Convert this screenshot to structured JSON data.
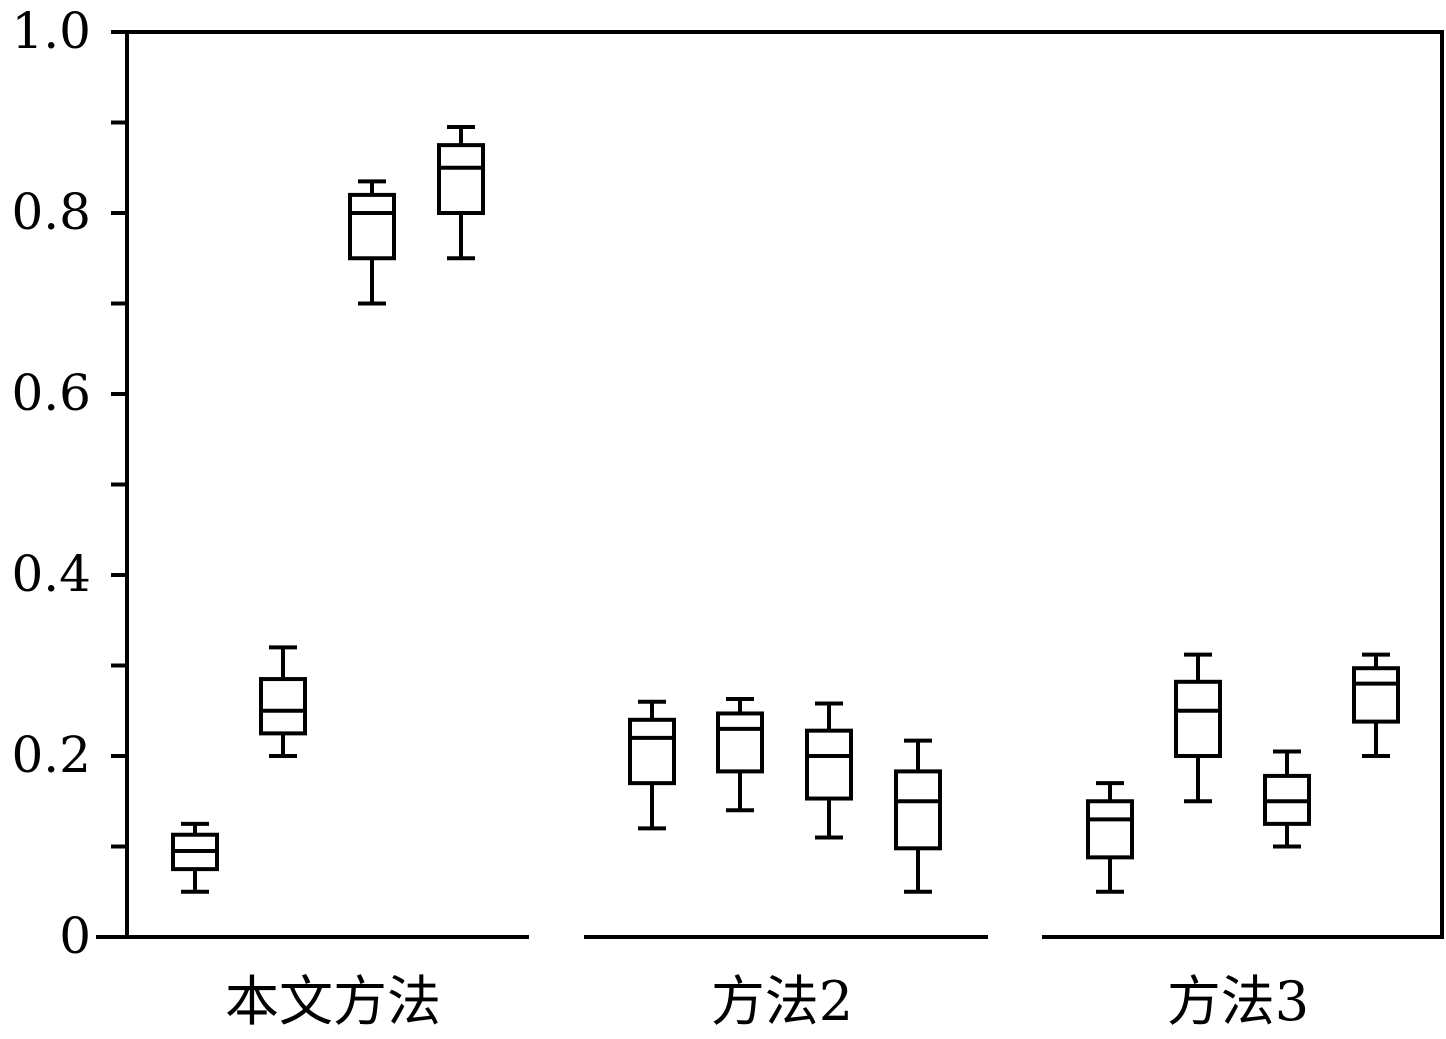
{
  "chart_data": {
    "type": "box",
    "title": "",
    "xlabel": "",
    "ylabel": "",
    "ylim": [
      0,
      1.0
    ],
    "y_ticks": [
      "0",
      "0.2",
      "0.4",
      "0.6",
      "0.8",
      "1.0"
    ],
    "y_tick_values": [
      0,
      0.2,
      0.4,
      0.6,
      0.8,
      1.0
    ],
    "y_minor_ticks": [
      0.1,
      0.3,
      0.5,
      0.7,
      0.9
    ],
    "grid": false,
    "groups": [
      {
        "label": "本文方法",
        "boxes": [
          {
            "whisker_low": 0.05,
            "q1": 0.075,
            "median": 0.095,
            "q3": 0.113,
            "whisker_high": 0.125
          },
          {
            "whisker_low": 0.2,
            "q1": 0.225,
            "median": 0.25,
            "q3": 0.285,
            "whisker_high": 0.32
          },
          {
            "whisker_low": 0.7,
            "q1": 0.75,
            "median": 0.8,
            "q3": 0.82,
            "whisker_high": 0.835
          },
          {
            "whisker_low": 0.75,
            "q1": 0.8,
            "median": 0.85,
            "q3": 0.875,
            "whisker_high": 0.895
          }
        ]
      },
      {
        "label": "方法2",
        "boxes": [
          {
            "whisker_low": 0.12,
            "q1": 0.17,
            "median": 0.22,
            "q3": 0.24,
            "whisker_high": 0.26
          },
          {
            "whisker_low": 0.14,
            "q1": 0.183,
            "median": 0.23,
            "q3": 0.247,
            "whisker_high": 0.263
          },
          {
            "whisker_low": 0.11,
            "q1": 0.153,
            "median": 0.2,
            "q3": 0.228,
            "whisker_high": 0.258
          },
          {
            "whisker_low": 0.05,
            "q1": 0.098,
            "median": 0.15,
            "q3": 0.183,
            "whisker_high": 0.217
          }
        ]
      },
      {
        "label": "方法3",
        "boxes": [
          {
            "whisker_low": 0.05,
            "q1": 0.088,
            "median": 0.13,
            "q3": 0.15,
            "whisker_high": 0.17
          },
          {
            "whisker_low": 0.15,
            "q1": 0.2,
            "median": 0.25,
            "q3": 0.282,
            "whisker_high": 0.312
          },
          {
            "whisker_low": 0.1,
            "q1": 0.125,
            "median": 0.15,
            "q3": 0.178,
            "whisker_high": 0.205
          },
          {
            "whisker_low": 0.2,
            "q1": 0.238,
            "median": 0.28,
            "q3": 0.297,
            "whisker_high": 0.312
          }
        ]
      }
    ]
  }
}
